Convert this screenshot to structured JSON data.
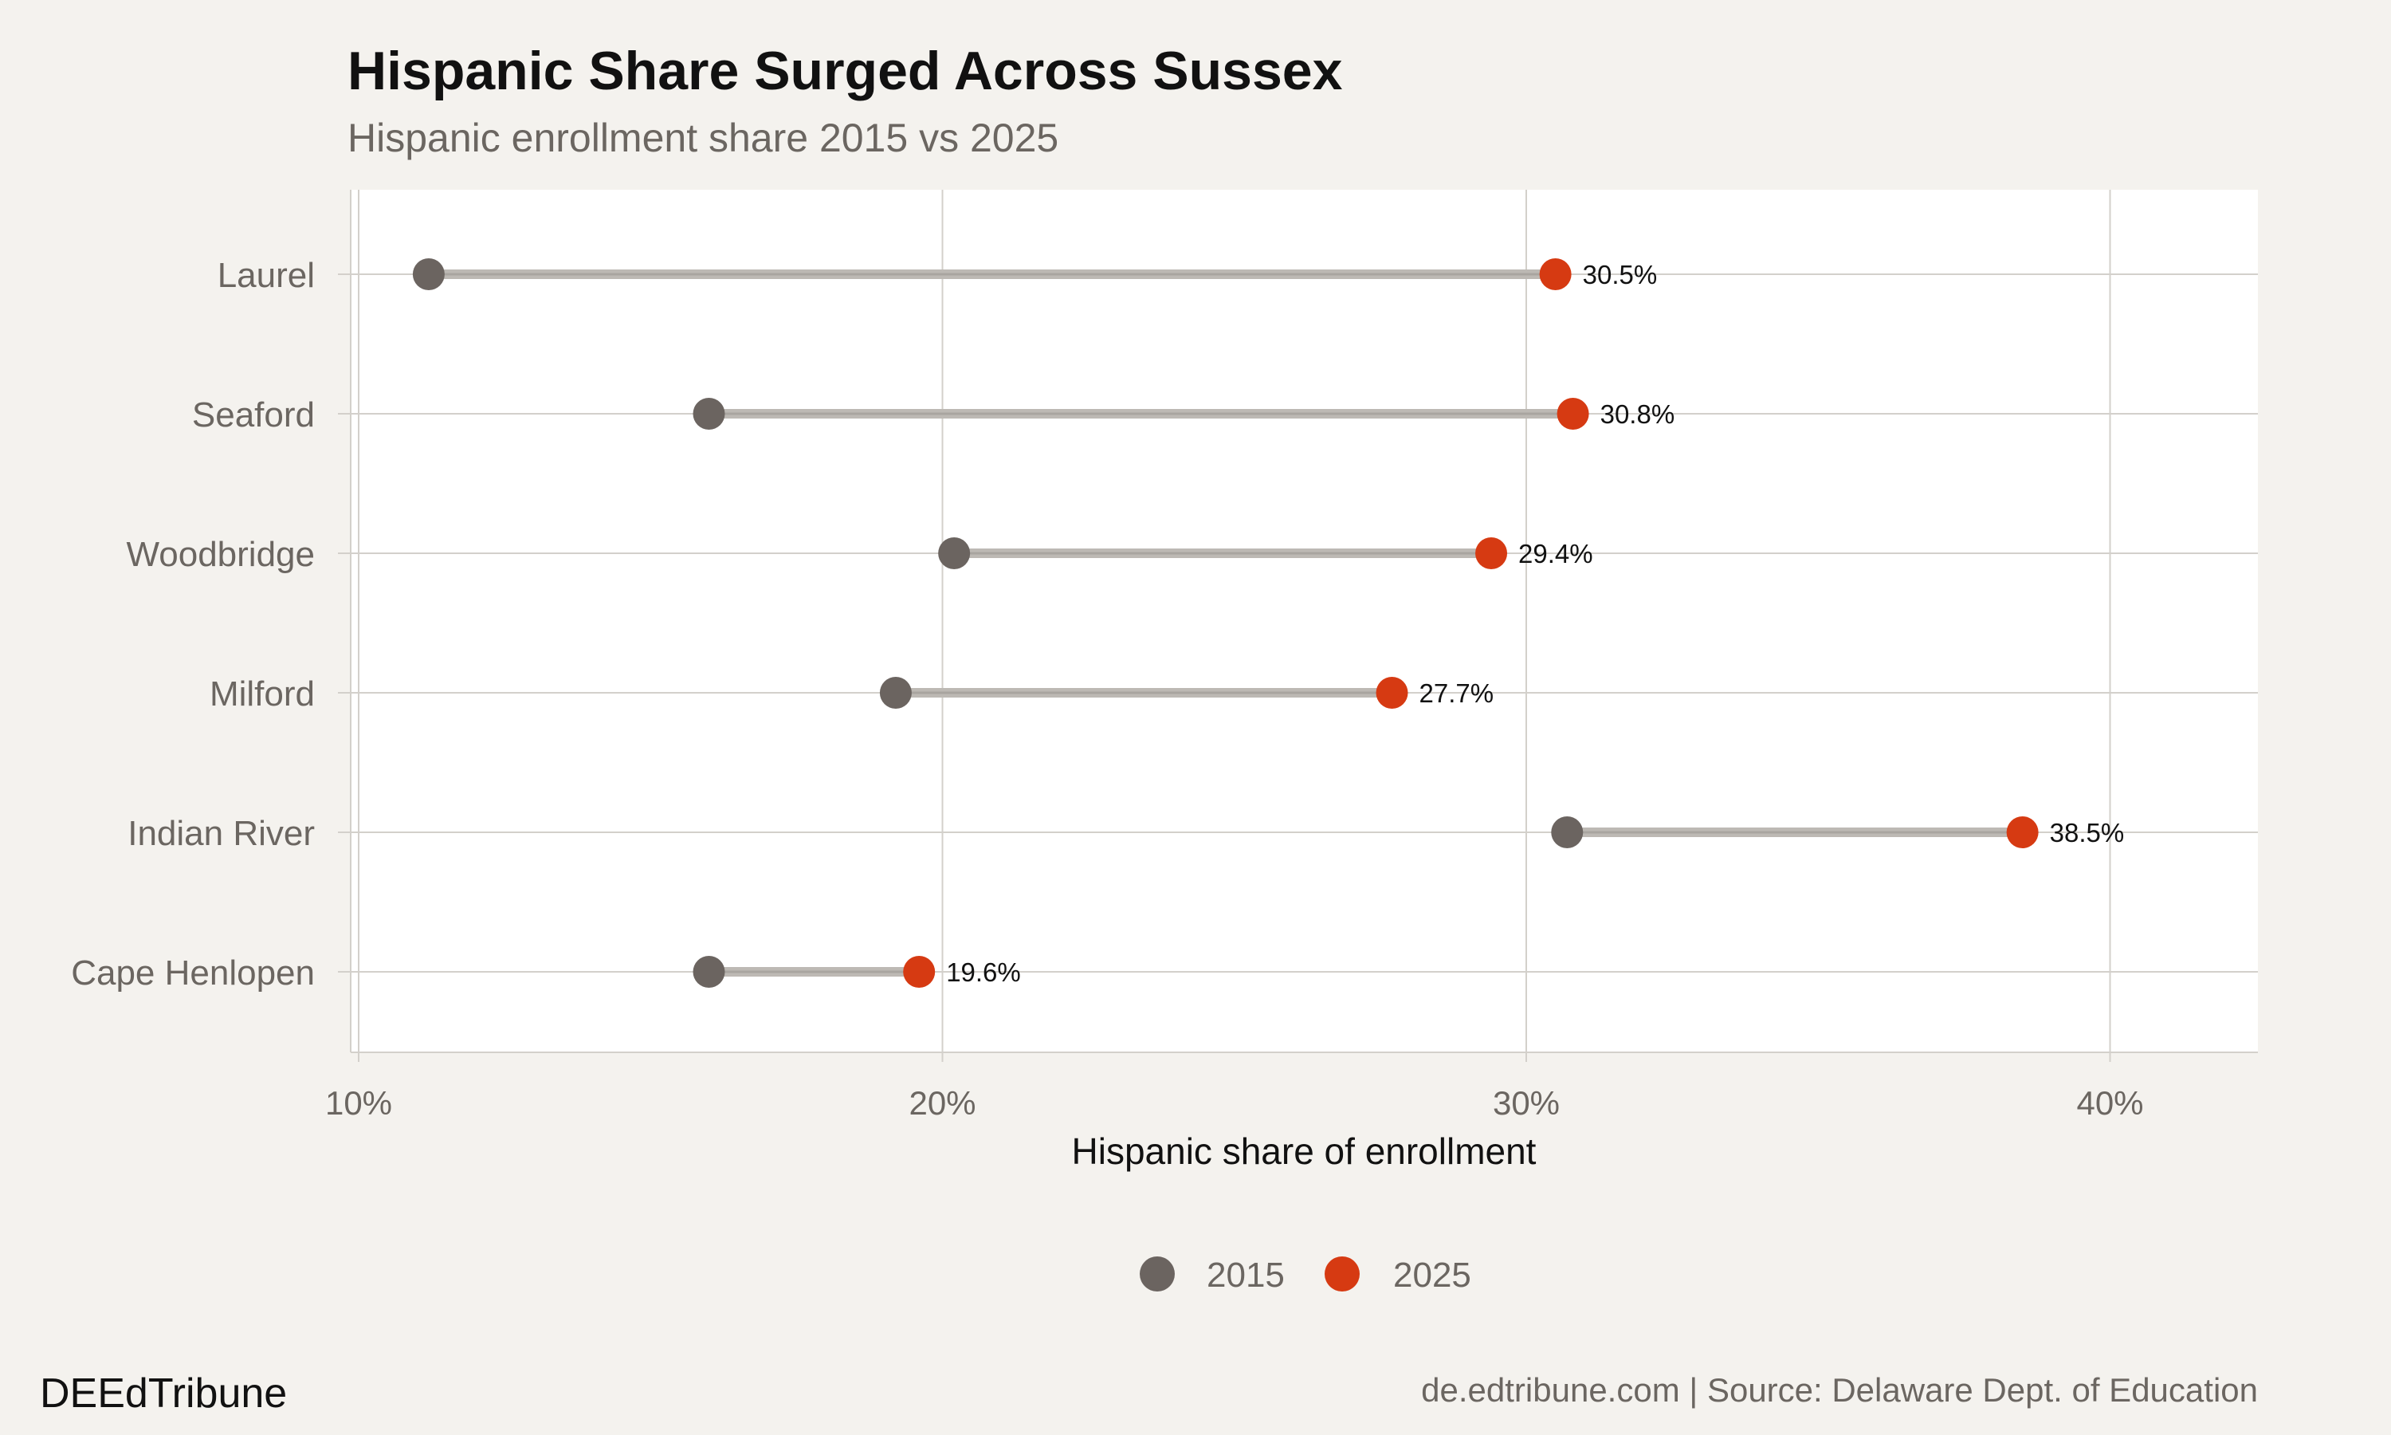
{
  "chart_data": {
    "type": "dumbbell",
    "title": "Hispanic Share Surged Across Sussex",
    "subtitle": "Hispanic enrollment share 2015 vs 2025",
    "xlabel": "Hispanic share of enrollment",
    "ylabel": "",
    "xlim": [
      10,
      42.5
    ],
    "xticks": [
      10,
      20,
      30,
      40
    ],
    "xtick_labels": [
      "10%",
      "20%",
      "30%",
      "40%"
    ],
    "categories": [
      "Laurel",
      "Seaford",
      "Woodbridge",
      "Milford",
      "Indian River",
      "Cape Henlopen"
    ],
    "series": [
      {
        "name": "2015",
        "color": "#6b6460",
        "values": [
          11.2,
          16.0,
          20.2,
          19.2,
          30.7,
          16.0
        ]
      },
      {
        "name": "2025",
        "color": "#d63a12",
        "values": [
          30.5,
          30.8,
          29.4,
          27.7,
          38.5,
          19.6
        ]
      }
    ],
    "data_labels": [
      "30.5%",
      "30.8%",
      "29.4%",
      "27.7%",
      "38.5%",
      "19.6%"
    ],
    "legend": {
      "position": "bottom",
      "entries": [
        "2015",
        "2025"
      ]
    },
    "grid": true
  },
  "footer": {
    "brand": "DEEdTribune",
    "source": "de.edtribune.com | Source: Delaware Dept. of Education"
  },
  "colors": {
    "background": "#f4f2ee",
    "panel": "#ffffff",
    "grid": "#d3d0cb",
    "connector": "#bdb9b4"
  }
}
